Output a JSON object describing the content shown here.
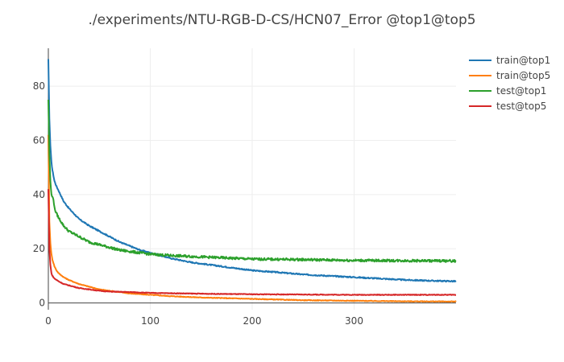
{
  "chart_data": {
    "type": "line",
    "title": "./experiments/NTU-RGB-D-CS/HCN07_Error @top1@top5",
    "xlabel": "",
    "ylabel": "",
    "xlim": [
      0,
      400
    ],
    "ylim": [
      -2.5,
      94
    ],
    "x_ticks": [
      0,
      100,
      200,
      300
    ],
    "y_ticks": [
      0,
      20,
      40,
      60,
      80
    ],
    "grid": true,
    "legend": "top-right",
    "series": [
      {
        "name": "train@top1",
        "color": "#1f77b4",
        "x": [
          0,
          1,
          2,
          3,
          4,
          6,
          8,
          10,
          15,
          20,
          30,
          40,
          50,
          60,
          70,
          80,
          90,
          100,
          120,
          140,
          160,
          180,
          200,
          225,
          250,
          275,
          300,
          325,
          350,
          375,
          400
        ],
        "y": [
          90,
          68,
          58,
          52,
          49,
          45,
          43,
          41.5,
          37.5,
          35,
          31,
          28.5,
          26.5,
          24.5,
          22.5,
          21,
          19.5,
          18.5,
          16.5,
          15,
          14,
          13,
          12,
          11.3,
          10.5,
          10,
          9.5,
          9,
          8.5,
          8.2,
          8
        ]
      },
      {
        "name": "train@top5",
        "color": "#ff7f0e",
        "x": [
          0,
          1,
          2,
          3,
          4,
          6,
          8,
          10,
          15,
          20,
          30,
          40,
          50,
          60,
          70,
          80,
          100,
          120,
          150,
          200,
          250,
          300,
          350,
          400
        ],
        "y": [
          62,
          30,
          22,
          18,
          16,
          13.5,
          12,
          11,
          9.5,
          8.5,
          7,
          6,
          5,
          4.5,
          4,
          3.5,
          3,
          2.5,
          2,
          1.5,
          1,
          0.8,
          0.6,
          0.5
        ]
      },
      {
        "name": "test@top1",
        "color": "#2ca02c",
        "x": [
          0,
          1,
          2,
          3,
          4,
          5,
          6,
          8,
          10,
          15,
          20,
          25,
          30,
          40,
          50,
          60,
          70,
          80,
          90,
          100,
          120,
          150,
          200,
          250,
          300,
          350,
          400
        ],
        "y": [
          75,
          55,
          45,
          40,
          39,
          38.5,
          35,
          33,
          31.5,
          28.5,
          26.5,
          25.5,
          24.5,
          22.5,
          21.5,
          20.5,
          19.5,
          19,
          18.5,
          18,
          17.5,
          17,
          16.2,
          16,
          15.7,
          15.6,
          15.5
        ]
      },
      {
        "name": "test@top5",
        "color": "#d62728",
        "x": [
          0,
          1,
          2,
          3,
          4,
          6,
          8,
          10,
          15,
          20,
          30,
          40,
          50,
          60,
          80,
          100,
          150,
          200,
          250,
          300,
          350,
          400
        ],
        "y": [
          42,
          20,
          14,
          11,
          10,
          9,
          8.5,
          8,
          7,
          6.5,
          5.5,
          5,
          4.5,
          4.2,
          4,
          3.7,
          3.4,
          3.2,
          3.1,
          3,
          3,
          3
        ]
      }
    ]
  }
}
